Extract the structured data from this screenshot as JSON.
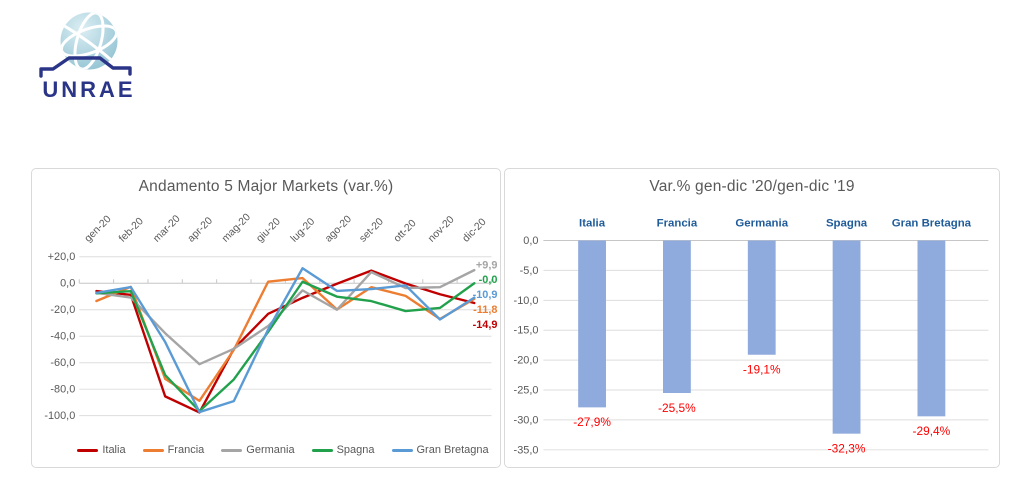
{
  "logo": {
    "text": "UNRAE",
    "navy": "#2B3588",
    "globe_color": "#A9CFDC"
  },
  "colors": {
    "axis_text": "#595959",
    "gridline": "#DDDDDD",
    "zero_line": "#C6C6C6",
    "title": "#595959",
    "panel_border": "#D9D9D9"
  },
  "chart_data": [
    {
      "type": "line",
      "title": "Andamento 5 Major Markets (var.%)",
      "categories": [
        "gen-20",
        "feb-20",
        "mar-20",
        "apr-20",
        "mag-20",
        "giu-20",
        "lug-20",
        "ago-20",
        "set-20",
        "ott-20",
        "nov-20",
        "dic-20"
      ],
      "series": [
        {
          "name": "Italia",
          "color": "#C00000",
          "values": [
            -5.9,
            -8.8,
            -85.4,
            -97.6,
            -49.6,
            -23.1,
            -11.0,
            -0.4,
            9.5,
            -0.2,
            -8.3,
            -14.9
          ],
          "end_label": "-14,9"
        },
        {
          "name": "Francia",
          "color": "#ED7D31",
          "values": [
            -13.4,
            -2.7,
            -72.2,
            -88.8,
            -50.3,
            1.2,
            3.9,
            -19.8,
            -3.0,
            -9.5,
            -27.0,
            -11.8
          ],
          "end_label": "-11,8"
        },
        {
          "name": "Germania",
          "color": "#A5A5A5",
          "values": [
            -7.3,
            -10.8,
            -37.7,
            -61.1,
            -49.5,
            -32.3,
            -5.4,
            -20.0,
            8.4,
            -3.6,
            -3.0,
            9.9
          ],
          "end_label": "+9,9"
        },
        {
          "name": "Spagna",
          "color": "#22A14C",
          "values": [
            -7.6,
            -6.0,
            -69.3,
            -96.5,
            -72.7,
            -36.7,
            1.1,
            -10.1,
            -13.5,
            -21.0,
            -18.7,
            0.0
          ],
          "end_label": "-0,0"
        },
        {
          "name": "Gran Bretagna",
          "color": "#5B9BD5",
          "values": [
            -7.3,
            -2.9,
            -44.4,
            -97.3,
            -89.0,
            -34.9,
            11.3,
            -5.8,
            -4.4,
            -1.6,
            -27.4,
            -10.9
          ],
          "end_label": "-10,9"
        }
      ],
      "ylim": [
        -100,
        20
      ],
      "yticks": [
        {
          "v": 20,
          "label": "+20,0"
        },
        {
          "v": 0,
          "label": "0,0"
        },
        {
          "v": -20,
          "label": "-20,0"
        },
        {
          "v": -40,
          "label": "-40,0"
        },
        {
          "v": -60,
          "label": "-60,0"
        },
        {
          "v": -80,
          "label": "-80,0"
        },
        {
          "v": -100,
          "label": "-100,0"
        }
      ],
      "grid": true,
      "legend_position": "bottom"
    },
    {
      "type": "bar",
      "title": "Var.% gen-dic '20/gen-dic '19",
      "categories": [
        "Italia",
        "Francia",
        "Germania",
        "Spagna",
        "Gran Bretagna"
      ],
      "values": [
        -27.9,
        -25.5,
        -19.1,
        -32.3,
        -29.4
      ],
      "value_labels": [
        "-27,9%",
        "-25,5%",
        "-19,1%",
        "-32,3%",
        "-29,4%"
      ],
      "ylim": [
        -35,
        0
      ],
      "yticks": [
        {
          "v": 0,
          "label": "0,0"
        },
        {
          "v": -5,
          "label": "-5,0"
        },
        {
          "v": -10,
          "label": "-10,0"
        },
        {
          "v": -15,
          "label": "-15,0"
        },
        {
          "v": -20,
          "label": "-20,0"
        },
        {
          "v": -25,
          "label": "-25,0"
        },
        {
          "v": -30,
          "label": "-30,0"
        },
        {
          "v": -35,
          "label": "-35,0"
        }
      ],
      "bar_color": "#8FAADC",
      "value_label_color": "#FF0000",
      "category_label_color": "#1F5B99",
      "grid": true,
      "legend_position": "none"
    }
  ]
}
